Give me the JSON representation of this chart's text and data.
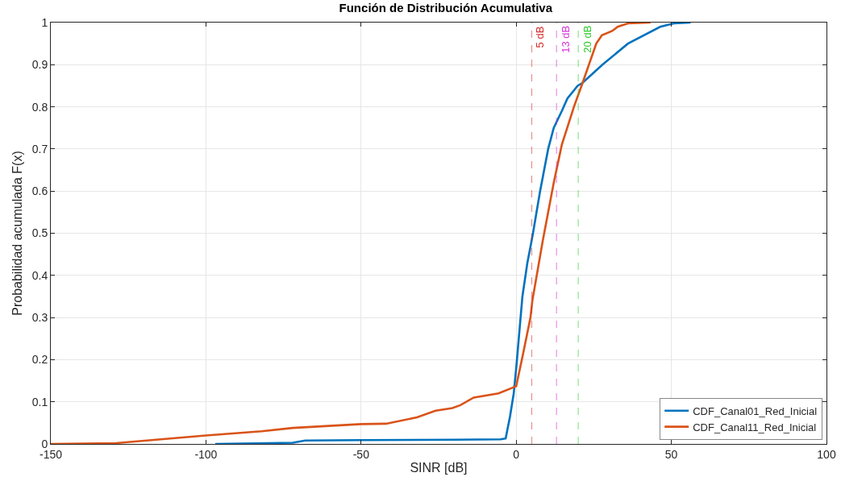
{
  "chart_data": {
    "type": "line",
    "title": "Función de Distribución Acumulativa",
    "xlabel": "SINR [dB]",
    "ylabel": "Probabilidad acumulada F(x)",
    "series": [
      {
        "name": "CDF_Canal01_Red_Inicial",
        "color": "#0072bd",
        "x": [
          -97,
          -80,
          -72,
          -68,
          -50,
          -20,
          -5,
          -3.4,
          -2,
          -0.8,
          0,
          2,
          3.6,
          4.9,
          5.4,
          7.7,
          10.3,
          12.1,
          14.7,
          16.5,
          19.8,
          21.4,
          27.8,
          36,
          46.4,
          50.8,
          56.2
        ],
        "values": [
          0,
          0.002,
          0.003,
          0.008,
          0.009,
          0.01,
          0.011,
          0.013,
          0.065,
          0.12,
          0.18,
          0.35,
          0.43,
          0.48,
          0.5,
          0.6,
          0.7,
          0.75,
          0.79,
          0.82,
          0.85,
          0.857,
          0.9,
          0.95,
          0.99,
          0.998,
          1
        ]
      },
      {
        "name": "CDF_Canal11_Red_Inicial",
        "color": "#d95319",
        "x": [
          -150,
          -129,
          -100,
          -82,
          -72,
          -50,
          -42,
          -32,
          -26,
          -20.6,
          -18,
          -13.7,
          -5.7,
          0,
          2.1,
          4.6,
          5.2,
          8.5,
          12.1,
          14.7,
          18.6,
          21.4,
          25.8,
          27.6,
          30.9,
          32.7,
          36,
          43.3
        ],
        "values": [
          0,
          0.002,
          0.02,
          0.03,
          0.038,
          0.047,
          0.048,
          0.063,
          0.079,
          0.085,
          0.092,
          0.11,
          0.12,
          0.137,
          0.21,
          0.3,
          0.34,
          0.48,
          0.62,
          0.71,
          0.8,
          0.857,
          0.95,
          0.97,
          0.98,
          0.99,
          0.998,
          1
        ]
      }
    ],
    "xlim": [
      -150,
      100
    ],
    "xticks": [
      -150,
      -100,
      -50,
      0,
      50,
      100
    ],
    "ylim": [
      0,
      1
    ],
    "yticks": [
      0,
      0.1,
      0.2,
      0.3,
      0.4,
      0.5,
      0.6,
      0.7,
      0.8,
      0.9,
      1
    ],
    "ref_lines": [
      {
        "axis": "x",
        "value": 5,
        "label": "5 dB",
        "color": "#d62728",
        "line_style": "dashed"
      },
      {
        "axis": "x",
        "value": 13,
        "label": "13 dB",
        "color": "#d633d6",
        "line_style": "dashed"
      },
      {
        "axis": "x",
        "value": 20,
        "label": "20 dB",
        "color": "#2ecc2e",
        "line_style": "dashed"
      }
    ],
    "grid": true,
    "legend": "bottom right",
    "marker": "none",
    "line_style": "solid"
  }
}
